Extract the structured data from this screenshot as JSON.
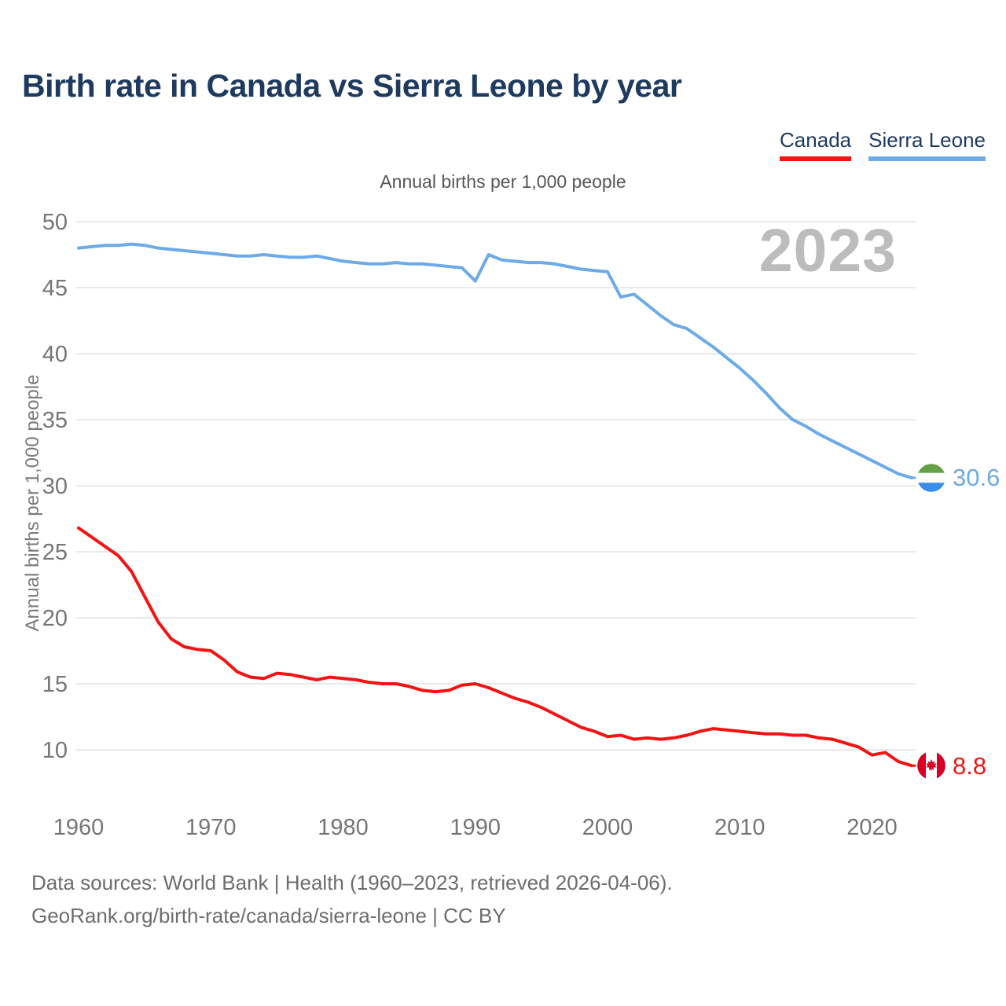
{
  "page": {
    "title": "Birth rate in Canada vs Sierra Leone by year",
    "subtitle": "Annual births per 1,000 people",
    "watermark": "2023",
    "footer_line1": "Data sources: World Bank | Health (1960–2023, retrieved 2026-04-06).",
    "footer_line2": "GeoRank.org/birth-rate/canada/sierra-leone | CC BY"
  },
  "colors": {
    "title_navy": "#1e3a5f",
    "legend_text_navy": "#1d3a5f",
    "canada_red": "#f31313",
    "sierra_leone_blue": "#6caae8",
    "axis_tick_gray": "#757575",
    "gridline_gray": "#e9e9e9",
    "watermark_gray": "#bcbcbc",
    "canada_flag_red": "#d80027",
    "sierra_leone_flag_green": "#63a144",
    "sierra_leone_flag_blue": "#3a8de8"
  },
  "chart_data": {
    "type": "line",
    "title": "Birth rate in Canada vs Sierra Leone by year",
    "subtitle": "Annual births per 1,000 people",
    "xlabel": "",
    "ylabel": "Annual births per 1,000 people",
    "grid": "horizontal",
    "legend_position": "top-right",
    "watermark": "2023",
    "ylim": [
      8,
      51
    ],
    "y_ticks": [
      50,
      45,
      40,
      35,
      30,
      25,
      20,
      15,
      10
    ],
    "x_ticks": [
      1960,
      1970,
      1980,
      1990,
      2000,
      2010,
      2020
    ],
    "years": [
      1960,
      1961,
      1962,
      1963,
      1964,
      1965,
      1966,
      1967,
      1968,
      1969,
      1970,
      1971,
      1972,
      1973,
      1974,
      1975,
      1976,
      1977,
      1978,
      1979,
      1980,
      1981,
      1982,
      1983,
      1984,
      1985,
      1986,
      1987,
      1988,
      1989,
      1990,
      1991,
      1992,
      1993,
      1994,
      1995,
      1996,
      1997,
      1998,
      1999,
      2000,
      2001,
      2002,
      2003,
      2004,
      2005,
      2006,
      2007,
      2008,
      2009,
      2010,
      2011,
      2012,
      2013,
      2014,
      2015,
      2016,
      2017,
      2018,
      2019,
      2020,
      2021,
      2022,
      2023
    ],
    "series": [
      {
        "name": "Canada",
        "color": "#f31313",
        "end_label": "8.8",
        "end_value": 8.8,
        "flag": "canada",
        "values": [
          26.8,
          26.1,
          25.4,
          24.7,
          23.5,
          21.6,
          19.7,
          18.4,
          17.8,
          17.6,
          17.5,
          16.8,
          15.9,
          15.5,
          15.4,
          15.8,
          15.7,
          15.5,
          15.3,
          15.5,
          15.4,
          15.3,
          15.1,
          15.0,
          15.0,
          14.8,
          14.5,
          14.4,
          14.5,
          14.9,
          15.0,
          14.7,
          14.3,
          13.9,
          13.6,
          13.2,
          12.7,
          12.2,
          11.7,
          11.4,
          11.0,
          11.1,
          10.8,
          10.9,
          10.8,
          10.9,
          11.1,
          11.4,
          11.6,
          11.5,
          11.4,
          11.3,
          11.2,
          11.2,
          11.1,
          11.1,
          10.9,
          10.8,
          10.5,
          10.2,
          9.6,
          9.8,
          9.1,
          8.8
        ]
      },
      {
        "name": "Sierra Leone",
        "color": "#6caae8",
        "end_label": "30.6",
        "end_value": 30.6,
        "flag": "sierra-leone",
        "values": [
          48.0,
          48.1,
          48.2,
          48.2,
          48.3,
          48.2,
          48.0,
          47.9,
          47.8,
          47.7,
          47.6,
          47.5,
          47.4,
          47.4,
          47.5,
          47.4,
          47.3,
          47.3,
          47.4,
          47.2,
          47.0,
          46.9,
          46.8,
          46.8,
          46.9,
          46.8,
          46.8,
          46.7,
          46.6,
          46.5,
          45.5,
          47.5,
          47.1,
          47.0,
          46.9,
          46.9,
          46.8,
          46.6,
          46.4,
          46.3,
          46.2,
          44.3,
          44.5,
          43.7,
          42.9,
          42.2,
          41.9,
          41.2,
          40.5,
          39.7,
          38.9,
          38.0,
          37.0,
          35.9,
          35.0,
          34.5,
          33.9,
          33.4,
          32.9,
          32.4,
          31.9,
          31.4,
          30.9,
          30.6
        ]
      }
    ]
  }
}
